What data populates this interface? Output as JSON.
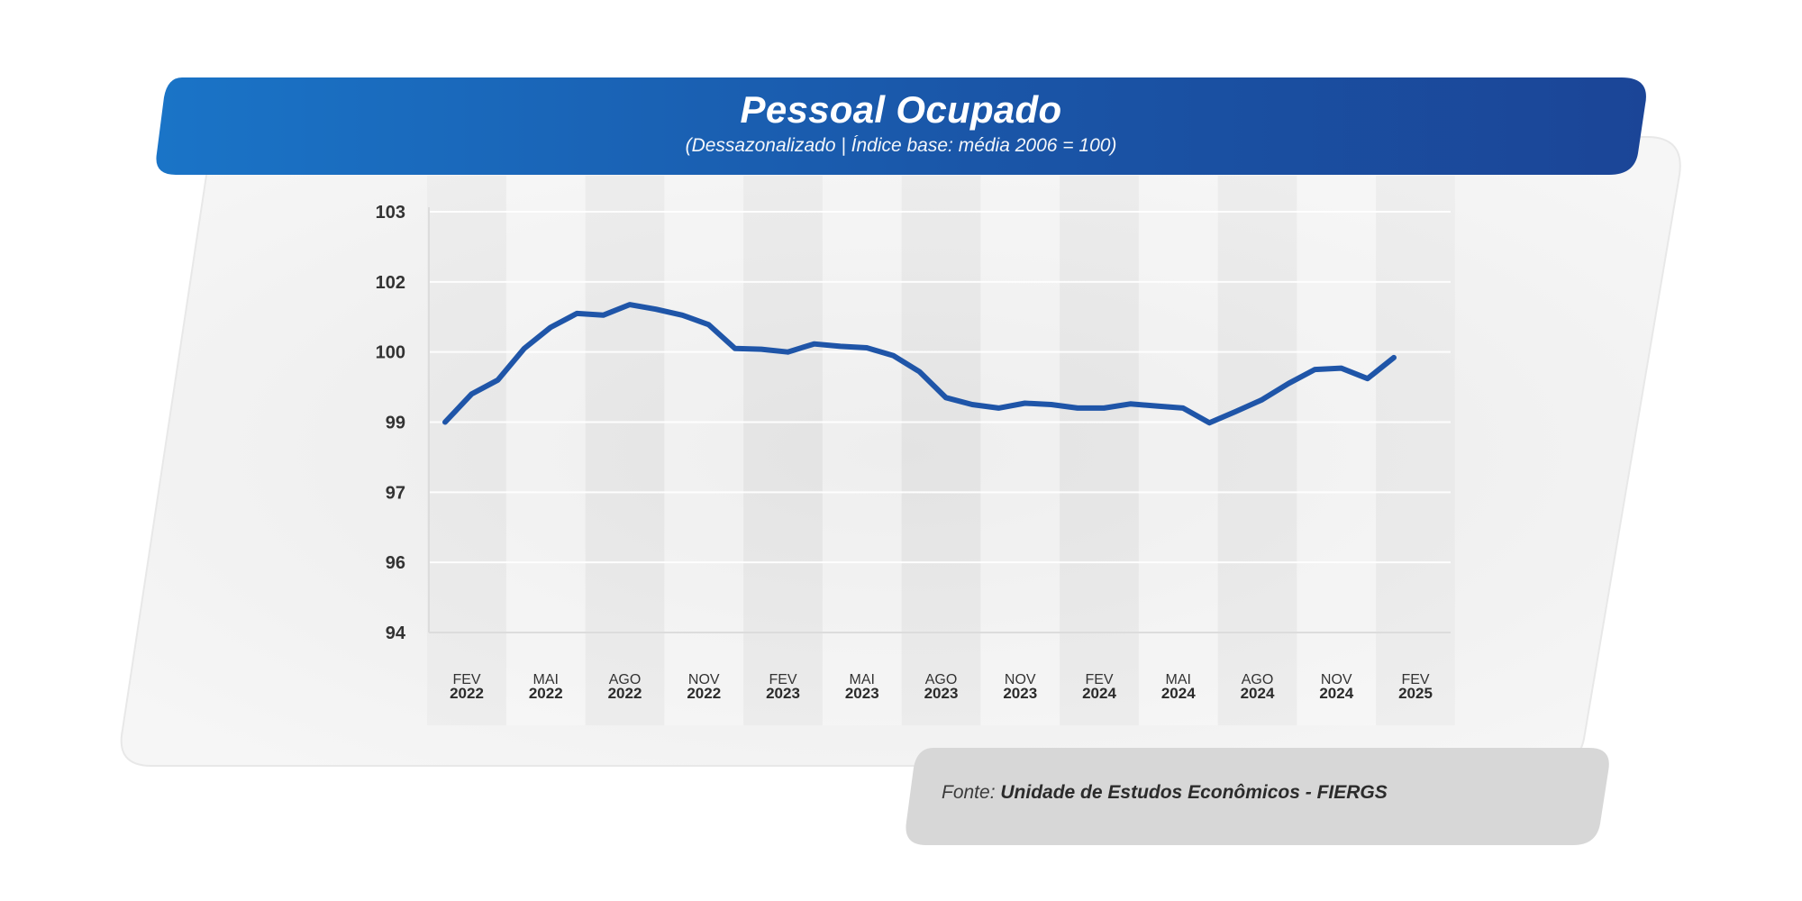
{
  "header": {
    "title": "Pessoal Ocupado",
    "subtitle": "(Dessazonalizado | Índice base: média 2006 = 100)"
  },
  "source": {
    "prefix": "Fonte: ",
    "name": "Unidade de Estudos Econômicos - FIERGS"
  },
  "colors": {
    "header_start": "#1a73c6",
    "header_end": "#1b4597",
    "line": "#1f55a8",
    "panel": "#f2f2f2",
    "source_box": "#d7d7d7"
  },
  "chart_data": {
    "type": "line",
    "title": "Pessoal Ocupado",
    "subtitle": "(Dessazonalizado | Índice base: média 2006 = 100)",
    "y_ticks": [
      "103",
      "102",
      "100",
      "99",
      "97",
      "96",
      "94"
    ],
    "x_tick_labels": [
      {
        "month": "FEV",
        "year": "2022"
      },
      {
        "month": "MAI",
        "year": "2022"
      },
      {
        "month": "AGO",
        "year": "2022"
      },
      {
        "month": "NOV",
        "year": "2022"
      },
      {
        "month": "FEV",
        "year": "2023"
      },
      {
        "month": "MAI",
        "year": "2023"
      },
      {
        "month": "AGO",
        "year": "2023"
      },
      {
        "month": "NOV",
        "year": "2023"
      },
      {
        "month": "FEV",
        "year": "2024"
      },
      {
        "month": "MAI",
        "year": "2024"
      },
      {
        "month": "AGO",
        "year": "2024"
      },
      {
        "month": "NOV",
        "year": "2024"
      },
      {
        "month": "FEV",
        "year": "2025"
      }
    ],
    "series": [
      {
        "values": [
          99.0,
          99.4,
          99.6,
          100.1,
          100.7,
          101.1,
          101.05,
          101.35,
          101.22,
          101.05,
          100.78,
          100.1,
          100.08,
          100.0,
          100.23,
          100.16,
          100.12,
          99.95,
          99.72,
          99.35,
          99.25,
          99.2,
          99.27,
          99.25,
          99.2,
          99.2,
          99.26,
          99.23,
          99.2,
          98.98,
          99.15,
          99.32,
          99.55,
          99.75,
          99.77,
          99.62,
          99.92
        ]
      }
    ]
  }
}
